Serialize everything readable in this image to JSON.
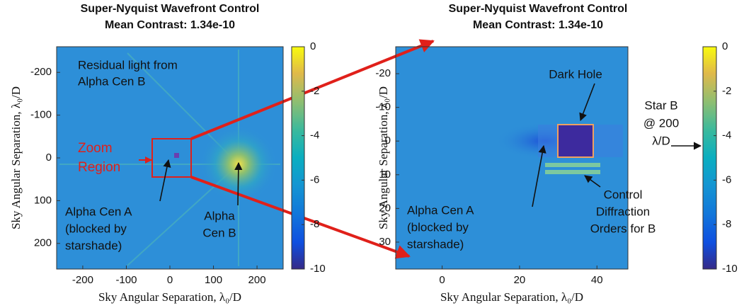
{
  "chart_data": [
    {
      "type": "image",
      "title": "Super-Nyquist Wavefront Control",
      "subtitle": "Mean Contrast: 1.34e-10",
      "x_label": "Sky Angular Separation, λ₀/D",
      "y_label": "Sky Angular Separation, λ₀/D",
      "xlim": [
        -260,
        260
      ],
      "xticks": [
        -200,
        -100,
        0,
        100,
        200
      ],
      "ylim": [
        -260,
        260
      ],
      "yticks": [
        -200,
        -100,
        0,
        100,
        200
      ],
      "y_reversed": true,
      "clim": [
        -10,
        0
      ],
      "cticks": [
        -10,
        -8,
        -6,
        -4,
        -2,
        0
      ],
      "colormap": "parula",
      "annotations": [
        [
          "Residual light from",
          "Alpha Cen B"
        ],
        [
          "Zoom",
          "Region"
        ],
        [
          "Alpha Cen A",
          "(blocked by",
          "starshade)"
        ],
        [
          "Alpha",
          "Cen B"
        ]
      ]
    },
    {
      "type": "image",
      "title": "Super-Nyquist Wavefront Control",
      "subtitle": "Mean Contrast: 1.34e-10",
      "x_label": "Sky Angular Separation, λ₀/D",
      "y_label": "Sky Angular Separation, λ₀/D",
      "xlim": [
        -12,
        48
      ],
      "xticks": [
        0,
        20,
        40
      ],
      "ylim": [
        -28,
        38
      ],
      "yticks": [
        -20,
        -10,
        0,
        10,
        20,
        30
      ],
      "y_reversed": true,
      "clim": [
        -10,
        0
      ],
      "cticks": [
        -10,
        -8,
        -6,
        -4,
        -2,
        0
      ],
      "colormap": "parula",
      "annotations": [
        [
          "Dark Hole"
        ],
        [
          "Star B",
          "@ 200",
          "λ/D"
        ],
        [
          "Alpha Cen A",
          "(blocked by",
          "starshade)"
        ],
        [
          "Control",
          "Diffraction",
          "Orders for B"
        ]
      ]
    }
  ]
}
